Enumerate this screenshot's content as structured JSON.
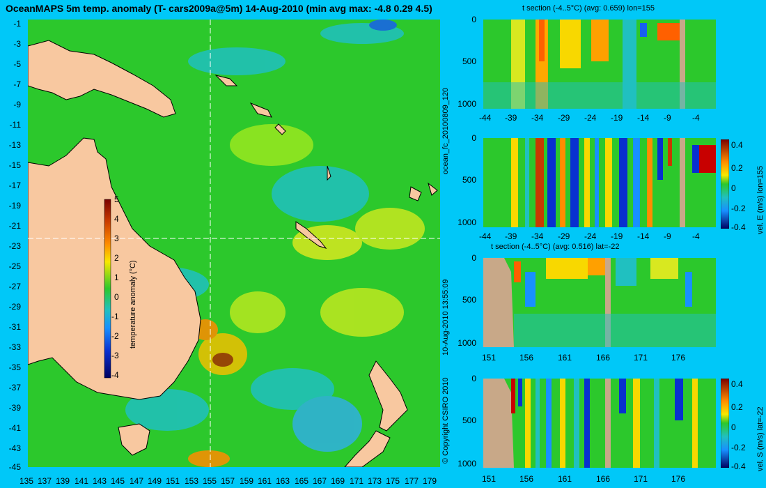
{
  "main_map": {
    "title": "OceanMAPS 5m temp. anomaly (T- cars2009a@5m) 14-Aug-2010 (min avg max: -4.8 0.29 4.5)",
    "y_ticks": [
      "-1",
      "-3",
      "-5",
      "-7",
      "-9",
      "-11",
      "-13",
      "-15",
      "-17",
      "-19",
      "-21",
      "-23",
      "-25",
      "-27",
      "-29",
      "-31",
      "-33",
      "-35",
      "-37",
      "-39",
      "-41",
      "-43",
      "-45"
    ],
    "x_ticks": [
      "135",
      "137",
      "139",
      "141",
      "143",
      "145",
      "147",
      "149",
      "151",
      "153",
      "155",
      "157",
      "159",
      "161",
      "163",
      "165",
      "167",
      "169",
      "171",
      "173",
      "175",
      "177",
      "179"
    ],
    "colorbar": {
      "label": "temperature anomaly (°C)",
      "ticks": [
        "5",
        "4",
        "3",
        "2",
        "1",
        "0",
        "-1",
        "-2",
        "-3",
        "-4"
      ]
    },
    "crosshair": {
      "lon": 155,
      "lat": -22
    }
  },
  "sections": {
    "t_lon": {
      "title": "t section (-4..5°C) (avg: 0.659) lon=155",
      "y_ticks": [
        "0",
        "500",
        "1000"
      ],
      "x_ticks": [
        "-44",
        "-39",
        "-34",
        "-29",
        "-24",
        "-19",
        "-14",
        "-9",
        "-4"
      ]
    },
    "vel_lon": {
      "y_ticks": [
        "0",
        "500",
        "1000"
      ],
      "x_ticks": [
        "-44",
        "-39",
        "-34",
        "-29",
        "-24",
        "-19",
        "-14",
        "-9",
        "-4"
      ],
      "colorbar_ticks": [
        "0.4",
        "0.2",
        "0",
        "-0.2",
        "-0.4"
      ],
      "colorbar_label": "vel. E (m/s) lon=155"
    },
    "t_lat": {
      "title": "t section (-4..5°C) (avg: 0.516) lat=-22",
      "y_ticks": [
        "0",
        "500",
        "1000"
      ],
      "x_ticks": [
        "151",
        "156",
        "161",
        "166",
        "171",
        "176"
      ]
    },
    "vel_lat": {
      "y_ticks": [
        "0",
        "500",
        "1000"
      ],
      "x_ticks": [
        "151",
        "156",
        "161",
        "166",
        "171",
        "176"
      ],
      "colorbar_ticks": [
        "0.4",
        "0.2",
        "0",
        "-0.2",
        "-0.4"
      ],
      "colorbar_label": "vel. S (m/s) lat=-22"
    }
  },
  "vertical_text": {
    "forecast_id": "ocean_fc_20100809_120",
    "timestamp": "10-Aug-2010 13:55:09",
    "copyright": "© Copyright CSIRO 2010"
  },
  "colors": {
    "background": "#00c8f8",
    "land": "#f8c8a0",
    "section_land": "#c8a888",
    "ocean": "#2cc82c"
  }
}
